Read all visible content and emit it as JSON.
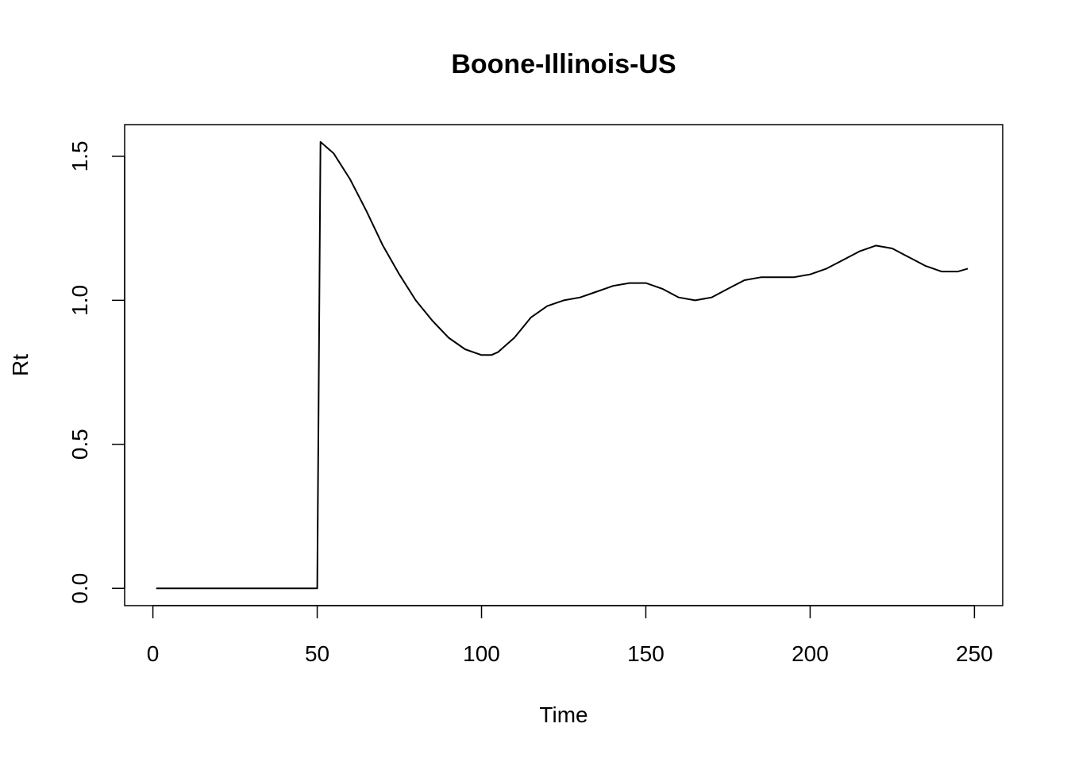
{
  "chart_data": {
    "type": "line",
    "title": "Boone-Illinois-US",
    "xlabel": "Time",
    "ylabel": "Rt",
    "xlim": [
      -8.6,
      258.6
    ],
    "ylim": [
      -0.06,
      1.61
    ],
    "xticks": [
      0,
      50,
      100,
      150,
      200,
      250
    ],
    "yticks": [
      0.0,
      0.5,
      1.0,
      1.5
    ],
    "xtick_labels": [
      "0",
      "50",
      "100",
      "150",
      "200",
      "250"
    ],
    "ytick_labels": [
      "0.0",
      "0.5",
      "1.0",
      "1.5"
    ],
    "grid": false,
    "legend": "none",
    "line_color": "#000000",
    "series": [
      {
        "x": [
          1,
          10,
          20,
          30,
          40,
          50,
          51,
          52,
          55,
          60,
          65,
          70,
          75,
          80,
          85,
          90,
          95,
          100,
          103,
          105,
          110,
          115,
          120,
          125,
          130,
          135,
          140,
          145,
          150,
          155,
          160,
          165,
          170,
          175,
          180,
          185,
          190,
          195,
          200,
          205,
          210,
          215,
          220,
          225,
          230,
          235,
          240,
          245,
          248
        ],
        "y": [
          0.0,
          0.0,
          0.0,
          0.0,
          0.0,
          0.0,
          1.55,
          1.54,
          1.51,
          1.42,
          1.31,
          1.19,
          1.09,
          1.0,
          0.93,
          0.87,
          0.83,
          0.81,
          0.81,
          0.82,
          0.87,
          0.94,
          0.98,
          1.0,
          1.01,
          1.03,
          1.05,
          1.06,
          1.06,
          1.04,
          1.01,
          1.0,
          1.01,
          1.04,
          1.07,
          1.08,
          1.08,
          1.08,
          1.09,
          1.11,
          1.14,
          1.17,
          1.19,
          1.18,
          1.15,
          1.12,
          1.1,
          1.1,
          1.11
        ]
      }
    ]
  }
}
